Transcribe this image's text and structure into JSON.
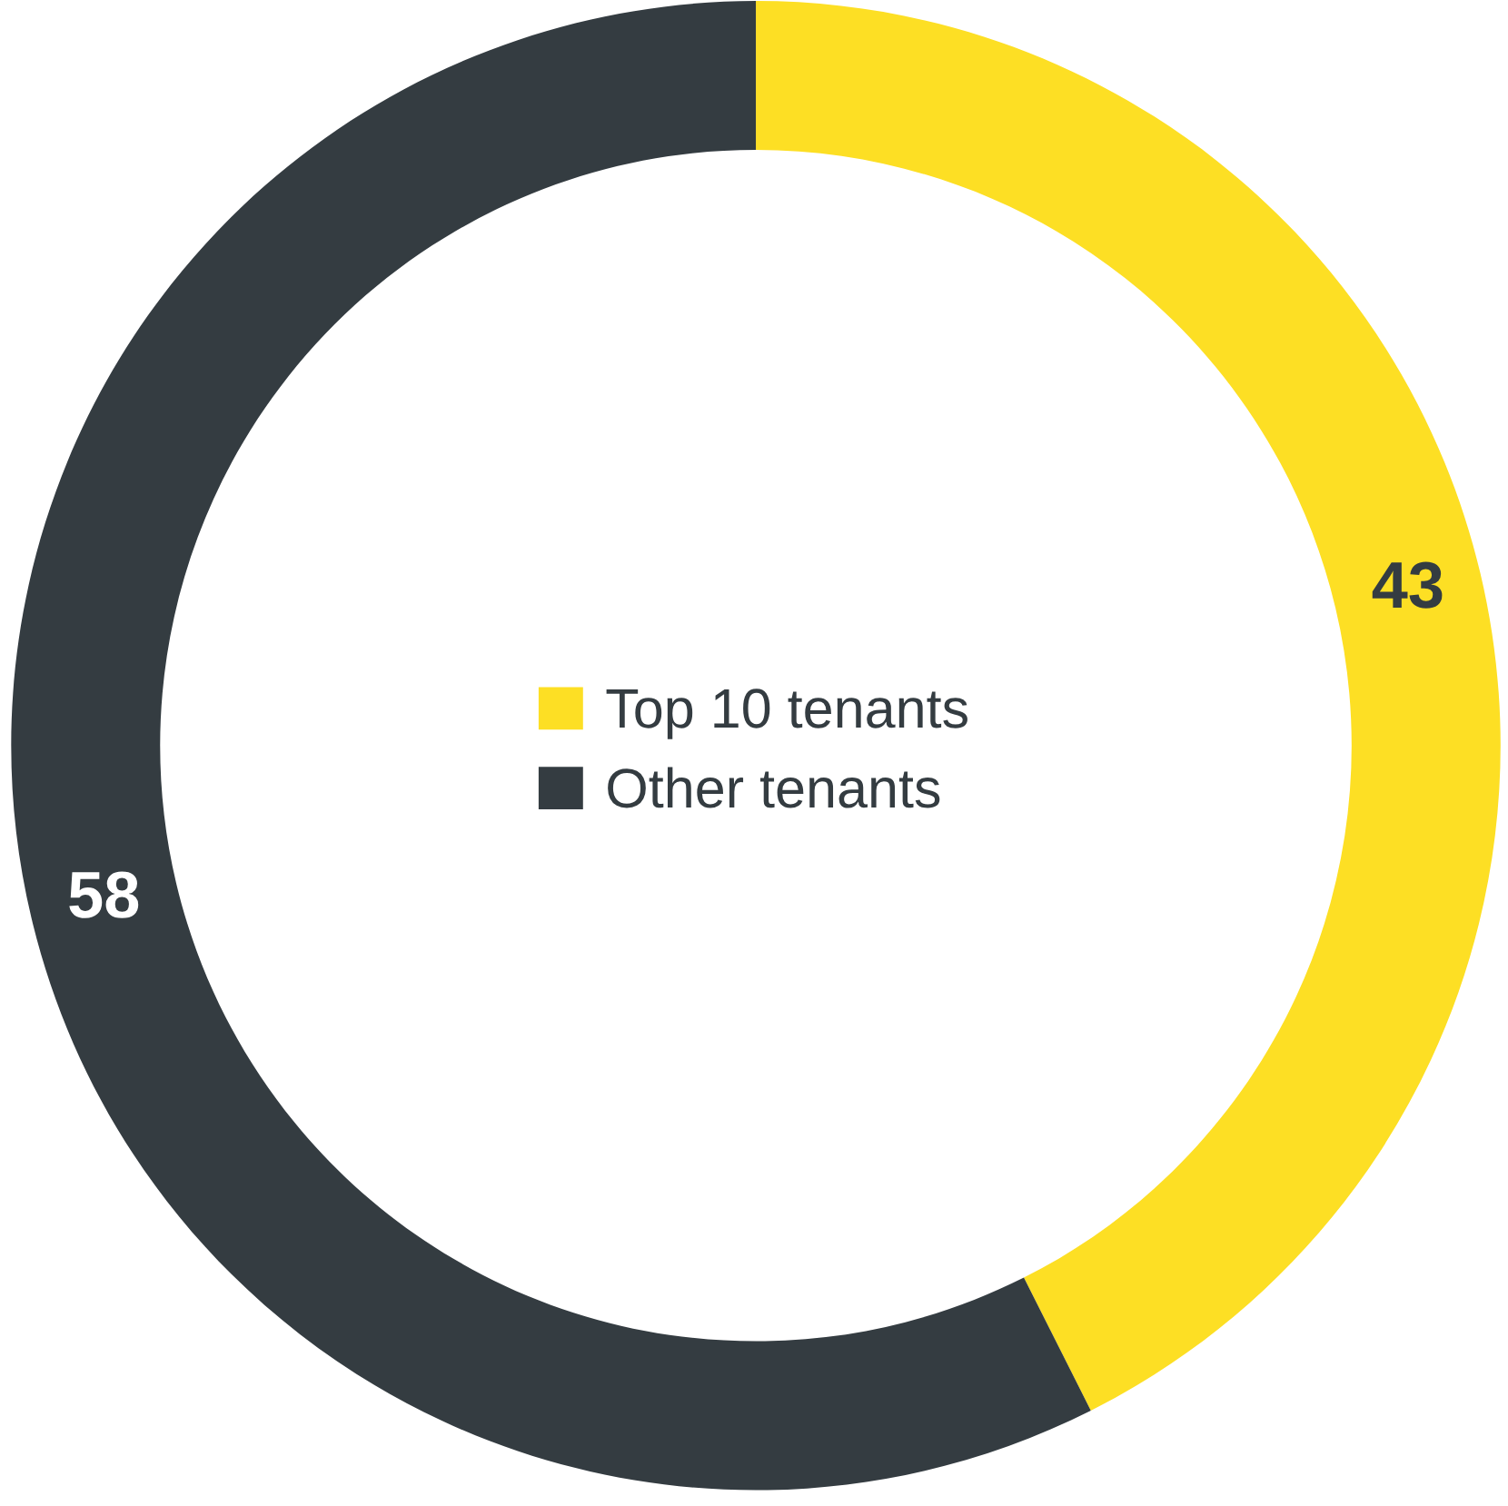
{
  "chart_data": {
    "type": "donut",
    "categories": [
      "Top 10 tenants",
      "Other tenants"
    ],
    "values": [
      43,
      58
    ],
    "colors": [
      "#fddf24",
      "#343c41"
    ],
    "data_labels": true,
    "legend": "center"
  }
}
